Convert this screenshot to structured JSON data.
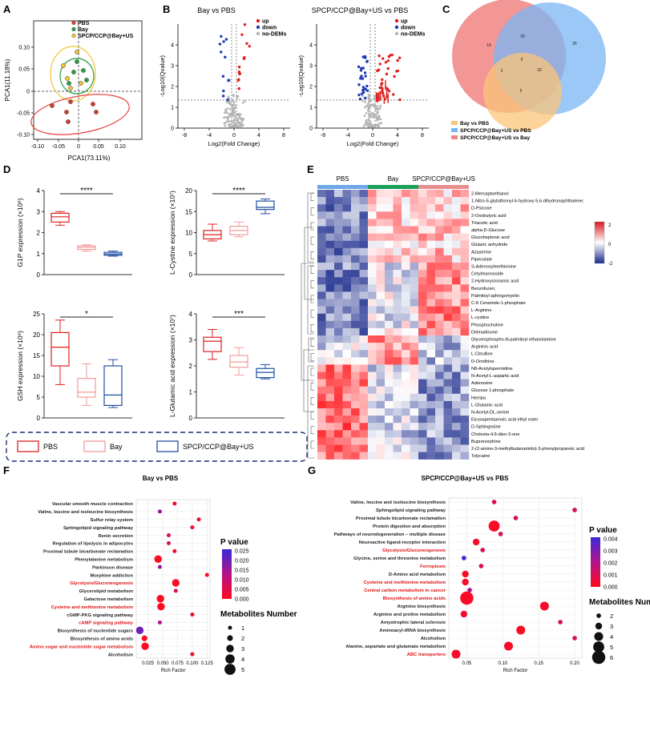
{
  "panels": {
    "A": {
      "letter": "A",
      "xlabel": "PCA1(73.11%)",
      "ylabel": "PCA1(11.18%)",
      "xticks": [
        "-0.10",
        "-0.05",
        "0",
        "0.05",
        "0.10"
      ],
      "yticks": [
        "0.10",
        "0.05",
        "0",
        "-0.05",
        "-0.10"
      ],
      "legend": [
        {
          "label": "PBS",
          "color": "#e8413b"
        },
        {
          "label": "Bay",
          "color": "#2e9e44"
        },
        {
          "label": "SPCP/CCP@Bay+US",
          "color": "#f3c530"
        }
      ]
    },
    "B": {
      "letter": "B",
      "left": {
        "title": "Bay vs PBS"
      },
      "right": {
        "title": "SPCP/CCP@Bay+US vs PBS"
      },
      "ylabel": "-Log10(Qvalue)",
      "xlabel": "Log2(Fold Change)",
      "xticks": [
        "-8",
        "-4",
        "0",
        "4",
        "8"
      ],
      "yticks": [
        "0",
        "1",
        "2",
        "3",
        "4"
      ],
      "legend": [
        {
          "label": "up",
          "color": "#e0201f"
        },
        {
          "label": "down",
          "color": "#1f3bb3"
        },
        {
          "label": "no-DEMs",
          "color": "#b5b5b5"
        }
      ]
    },
    "C": {
      "letter": "C",
      "counts": [
        "16",
        "26",
        "35",
        "0",
        "3",
        "32",
        "5"
      ],
      "legend": [
        {
          "label": "Bay vs PBS",
          "color": "#f9c47a"
        },
        {
          "label": "SPCP/CCP@Bay+US vs PBS",
          "color": "#7ab6f4"
        },
        {
          "label": "SPCP/CCP@Bay+US vs Bay",
          "color": "#f08484"
        }
      ]
    },
    "D": {
      "letter": "D",
      "plots": [
        {
          "ylabel": "G1P expression (×10⁶)",
          "yticks": [
            "4",
            "3",
            "2",
            "1",
            "0"
          ],
          "sig": "****"
        },
        {
          "ylabel": "L-Cystine expression (×10⁷)",
          "yticks": [
            "20",
            "15",
            "10",
            "5",
            "0"
          ],
          "sig": "****"
        },
        {
          "ylabel": "GSH expression (×10⁶)",
          "yticks": [
            "25",
            "20",
            "15",
            "10",
            "5",
            "0"
          ],
          "sig": "*"
        },
        {
          "ylabel": "L-Glutamic acid expression (×10⁷)",
          "yticks": [
            "4",
            "3",
            "2",
            "1",
            "0"
          ],
          "sig": "***"
        }
      ],
      "legend": [
        {
          "label": "PBS",
          "color": "#e0201f"
        },
        {
          "label": "Bay",
          "color": "#f29b9b"
        },
        {
          "label": "SPCP/CCP@Bay+US",
          "color": "#1f4fa0"
        }
      ]
    },
    "E": {
      "letter": "E",
      "groups": [
        "PBS",
        "Bay",
        "SPCP/CCP@Bay+US"
      ],
      "scale_ticks": [
        "2",
        "0",
        "-2"
      ],
      "rows": [
        "2-Mercaptoethanol",
        "1-Nitro-5-glutathionyl-6-hydroxy-5,6-dihydronaphthalene;",
        "D-Psicose",
        "2-Oxobutyric acid",
        "Triacetic acid",
        "alpha-D-Glucose",
        "Glucoheptonic acid",
        "Glutaric anhydride",
        "Azaserine",
        "Pipecolate",
        "S-Adenosylmethionine",
        "Cetylmannoside",
        "2-Hydroxycinnamic acid",
        "Benzofuran;",
        "Palmitoyl sphingomyelin",
        "C-8 Ceramide-1-phosphate",
        "L-Arginine",
        "L-cystine",
        "Phosphocholine",
        "Delmadinone",
        "Glycerophospho-N-palmitoyl ethanolamine",
        "Argininic acid",
        "L-Citrulline",
        "D-Ornithine",
        "N8-Acetylspermidine",
        "N-Acetyl-L-aspartic acid",
        "Adenosine",
        "Glucose 1-phosphate",
        "Hompa",
        "L-Glutamic acid",
        "N-Acetyl-DL-serine",
        "Eicosapentaenoic acid ethyl ester",
        "D-Sphingosine",
        "Cholesta-4,6-dien-3-one",
        "Buprenorphine",
        "2-(2-amino-3-methylbutanamido)-3-phenylpropanoic acid",
        "Tolycaine"
      ]
    },
    "F": {
      "letter": "F",
      "title": "Bay vs PBS",
      "xlabel": "Rich Factor",
      "xticks": [
        "0.025",
        "0.050",
        "0.075",
        "0.100",
        "0.125"
      ],
      "pvalue_title": "P value",
      "pvalue_ticks": [
        "0.025",
        "0.020",
        "0.015",
        "0.010",
        "0.005",
        "0.000"
      ],
      "size_title": "Metabolites Number",
      "size_ticks": [
        "1",
        "2",
        "3",
        "4",
        "5"
      ]
    },
    "G": {
      "letter": "G",
      "title": "SPCP/CCP@Bay+US vs PBS",
      "xlabel": "Rich Factor",
      "xticks": [
        "0.05",
        "0.10",
        "0.15",
        "0.20"
      ],
      "pvalue_title": "P value",
      "pvalue_ticks": [
        "0.004",
        "0.003",
        "0.002",
        "0.001",
        "0.000"
      ],
      "size_title": "Metabolites Number",
      "size_ticks": [
        "2",
        "3",
        "4",
        "5",
        "6"
      ]
    }
  },
  "chart_data": [
    {
      "id": "F",
      "type": "scatter",
      "title": "Bay vs PBS",
      "xlabel": "Rich Factor",
      "xlim": [
        0.005,
        0.13
      ],
      "categories": [
        "Vascular smooth muscle contraction",
        "Valine, leucine and isoleucine biosynthesis",
        "Sulfur relay system",
        "Sphingolipid signaling pathway",
        "Renin secretion",
        "Regulation of lipolysis in adipocytes",
        "Proximal tubule bicarbonate reclamation",
        "Phenylalanine metabolism",
        "Parkinson disease",
        "Morphine addiction",
        "Glycolysis/Gluconeogenesis",
        "Glycerolipid metabolism",
        "Galactose metabolism",
        "Cysteine and methionine metabolism",
        "cGMP-PKG signaling pathway",
        "cAMP signaling pathway",
        "Biosynthesis of nucleotide sugars",
        "Biosynthesis of amino acids",
        "Amino sugar and nucleotide sugar metabolism",
        "Alcoholism"
      ],
      "highlighted": [
        false,
        false,
        false,
        false,
        false,
        false,
        false,
        false,
        false,
        false,
        true,
        false,
        false,
        true,
        false,
        true,
        false,
        false,
        true,
        false
      ],
      "x": [
        0.07,
        0.045,
        0.111,
        0.1,
        0.06,
        0.06,
        0.07,
        0.042,
        0.045,
        0.125,
        0.072,
        0.072,
        0.046,
        0.047,
        0.1,
        0.045,
        0.011,
        0.019,
        0.02,
        0.1
      ],
      "count": [
        1,
        1,
        1,
        1,
        1,
        1,
        1,
        3,
        1,
        1,
        3,
        1,
        3,
        3,
        1,
        1,
        3,
        2,
        3,
        1
      ],
      "pvalue": [
        0.002,
        0.015,
        0.003,
        0.002,
        0.006,
        0.006,
        0.002,
        0.0003,
        0.015,
        0.002,
        0.0003,
        0.006,
        0.0002,
        0.0002,
        0.002,
        0.012,
        0.02,
        0.0004,
        0.0004,
        0.002
      ]
    },
    {
      "id": "G",
      "type": "scatter",
      "title": "SPCP/CCP@Bay+US vs PBS",
      "xlabel": "Rich Factor",
      "xlim": [
        0.025,
        0.21
      ],
      "categories": [
        "Valine, leucine and isoleucine biosynthesis",
        "Sphingolipid signaling pathway",
        "Proximal tubule bicarbonate reclamation",
        "Protein digestion and absorption",
        "Pathways of neurodegeneration – multiple disease",
        "Neuroactive ligand-receptor interaction",
        "Glycolysis/Gluconeogenesis",
        "Glycine, serine and threonine metabolism",
        "Ferroptosis",
        "D-Amino acid metabolism",
        "Cysteine and methionine metabolism",
        "Central carbon metabolism in cancer",
        "Biosynthesis of amino acids",
        "Arginine biosynthesis",
        "Arginine and proline metabolism",
        "Amyotrophic lateral sclerosis",
        "Aminoacyl-tRNA biosynthesis",
        "Alcoholism",
        "Alanine, aspartate and glutamate metabolism",
        "ABC transporters"
      ],
      "highlighted": [
        false,
        false,
        false,
        false,
        false,
        false,
        true,
        false,
        true,
        false,
        true,
        true,
        true,
        false,
        false,
        false,
        false,
        false,
        false,
        true
      ],
      "x": [
        0.088,
        0.2,
        0.118,
        0.088,
        0.097,
        0.063,
        0.072,
        0.046,
        0.07,
        0.048,
        0.048,
        0.054,
        0.05,
        0.158,
        0.046,
        0.18,
        0.125,
        0.2,
        0.108,
        0.035
      ],
      "count": [
        2,
        2,
        2,
        5,
        2,
        3,
        2,
        2,
        2,
        3,
        3,
        2,
        6,
        4,
        3,
        2,
        4,
        2,
        4,
        4
      ],
      "pvalue": [
        0.001,
        0.001,
        0.001,
        0.0001,
        0.001,
        0.0002,
        0.001,
        0.004,
        0.001,
        0.0002,
        0.0002,
        0.002,
        0.0001,
        0.0002,
        0.0003,
        0.001,
        0.0001,
        0.001,
        0.0002,
        0.0002
      ]
    },
    {
      "id": "D",
      "type": "box",
      "groups": [
        "PBS",
        "Bay",
        "SPCP/CCP@Bay+US"
      ],
      "series": [
        {
          "name": "G1P",
          "ylim": [
            0,
            4
          ],
          "boxes": [
            [
              2.35,
              2.5,
              2.75,
              2.92,
              3.0
            ],
            [
              1.12,
              1.2,
              1.3,
              1.37,
              1.42
            ],
            [
              0.88,
              0.92,
              0.98,
              1.06,
              1.12
            ]
          ]
        },
        {
          "name": "L-Cystine",
          "ylim": [
            0,
            20
          ],
          "boxes": [
            [
              8.0,
              8.5,
              9.5,
              10.5,
              12.0
            ],
            [
              9.0,
              9.5,
              10.5,
              11.5,
              12.5
            ],
            [
              14.5,
              15.5,
              16.0,
              17.5,
              18.0
            ]
          ]
        },
        {
          "name": "GSH",
          "ylim": [
            0,
            25
          ],
          "boxes": [
            [
              8,
              12.5,
              17,
              20.5,
              23.5
            ],
            [
              3,
              5,
              6.2,
              9.5,
              13
            ],
            [
              2.5,
              3,
              5.5,
              12.5,
              14
            ]
          ]
        },
        {
          "name": "L-Glutamic acid",
          "ylim": [
            0,
            4
          ],
          "boxes": [
            [
              2.25,
              2.55,
              2.95,
              3.1,
              3.4
            ],
            [
              1.65,
              1.95,
              2.15,
              2.4,
              2.7
            ],
            [
              1.5,
              1.55,
              1.75,
              1.9,
              2.05
            ]
          ]
        }
      ]
    }
  ]
}
